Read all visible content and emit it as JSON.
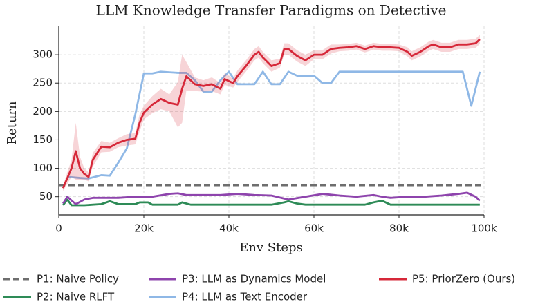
{
  "chart_data": {
    "type": "line",
    "title": "LLM Knowledge Transfer Paradigms on Detective",
    "xlabel": "Env Steps",
    "ylabel": "Return",
    "xlim": [
      0,
      100000
    ],
    "ylim": [
      18,
      350
    ],
    "xticks": [
      0,
      {
        "value": 20000,
        "label": "20k"
      },
      {
        "value": 40000,
        "label": "40k"
      },
      {
        "value": 60000,
        "label": "60k"
      },
      {
        "value": 80000,
        "label": "80k"
      },
      {
        "value": 100000,
        "label": "100k"
      }
    ],
    "yticks": [
      50,
      100,
      150,
      200,
      250,
      300
    ],
    "grid": true,
    "series": [
      {
        "name": "P1: Naive Policy",
        "color": "#6e6e6e",
        "dash": true,
        "x": [
          0,
          100000
        ],
        "values": [
          70,
          70
        ]
      },
      {
        "name": "P2: Naive RLFT",
        "color": "#2e8b57",
        "x": [
          1000,
          2000,
          3000,
          6000,
          10000,
          12000,
          14000,
          18000,
          19000,
          21000,
          22000,
          28000,
          29000,
          31000,
          50000,
          53000,
          54000,
          56000,
          58000,
          72000,
          74000,
          76000,
          78000,
          99000
        ],
        "values": [
          35,
          45,
          35,
          35,
          37,
          42,
          37,
          37,
          40,
          40,
          36,
          36,
          40,
          36,
          36,
          40,
          42,
          38,
          36,
          36,
          40,
          43,
          36,
          36
        ]
      },
      {
        "name": "P3: LLM as Dynamics Model",
        "color": "#8e44ad",
        "x": [
          1000,
          2000,
          4000,
          6000,
          8000,
          10000,
          14000,
          18000,
          22000,
          26000,
          28000,
          30000,
          34000,
          38000,
          42000,
          46000,
          50000,
          54000,
          58000,
          62000,
          66000,
          70000,
          74000,
          76000,
          78000,
          82000,
          86000,
          90000,
          94000,
          96000,
          98000,
          99000
        ],
        "values": [
          38,
          50,
          37,
          45,
          48,
          48,
          48,
          50,
          50,
          55,
          56,
          53,
          53,
          53,
          55,
          53,
          52,
          45,
          50,
          55,
          52,
          50,
          53,
          50,
          48,
          50,
          50,
          52,
          55,
          57,
          50,
          43
        ]
      },
      {
        "name": "P4: LLM as Text Encoder",
        "color": "#8fb8e6",
        "x": [
          2000,
          5000,
          7000,
          10000,
          12000,
          14000,
          16000,
          18000,
          20000,
          22000,
          24000,
          26000,
          28000,
          30000,
          32000,
          34000,
          36000,
          38000,
          40000,
          42000,
          44000,
          46000,
          48000,
          50000,
          52000,
          54000,
          56000,
          58000,
          60000,
          62000,
          64000,
          66000,
          70000,
          80000,
          90000,
          95000,
          97000,
          99000
        ],
        "values": [
          85,
          83,
          82,
          88,
          87,
          110,
          135,
          195,
          267,
          267,
          270,
          269,
          268,
          268,
          255,
          235,
          235,
          255,
          270,
          248,
          248,
          248,
          270,
          248,
          248,
          270,
          263,
          263,
          263,
          250,
          250,
          270,
          270,
          270,
          270,
          270,
          210,
          270
        ]
      },
      {
        "name": "P5: PriorZero (Ours)",
        "color": "#d62839",
        "x": [
          1000,
          3000,
          4000,
          5000,
          6000,
          7000,
          8000,
          10000,
          12000,
          14000,
          16000,
          18000,
          19000,
          20000,
          22000,
          24000,
          26000,
          28000,
          29000,
          30000,
          32000,
          34000,
          36000,
          38000,
          39000,
          41000,
          42000,
          44000,
          46000,
          47000,
          48000,
          50000,
          52000,
          53000,
          54000,
          56000,
          58000,
          60000,
          62000,
          64000,
          66000,
          68000,
          70000,
          72000,
          74000,
          76000,
          78000,
          80000,
          82000,
          83000,
          85000,
          87000,
          88000,
          90000,
          92000,
          94000,
          96000,
          98000,
          99000
        ],
        "values": [
          65,
          100,
          130,
          100,
          90,
          85,
          115,
          138,
          137,
          145,
          150,
          152,
          180,
          198,
          212,
          222,
          215,
          212,
          240,
          262,
          248,
          245,
          248,
          240,
          257,
          250,
          262,
          280,
          300,
          305,
          295,
          280,
          285,
          310,
          310,
          298,
          290,
          300,
          300,
          310,
          312,
          313,
          315,
          310,
          315,
          313,
          313,
          312,
          305,
          298,
          305,
          315,
          318,
          313,
          313,
          318,
          318,
          320,
          327
        ],
        "error": [
          5,
          15,
          50,
          20,
          10,
          8,
          12,
          10,
          8,
          8,
          10,
          10,
          15,
          12,
          15,
          18,
          15,
          40,
          60,
          25,
          12,
          10,
          12,
          10,
          10,
          8,
          10,
          10,
          10,
          10,
          10,
          10,
          8,
          10,
          10,
          10,
          10,
          8,
          8,
          8,
          6,
          6,
          6,
          6,
          6,
          6,
          6,
          6,
          8,
          8,
          8,
          8,
          8,
          8,
          8,
          8,
          8,
          8,
          8
        ]
      }
    ]
  }
}
